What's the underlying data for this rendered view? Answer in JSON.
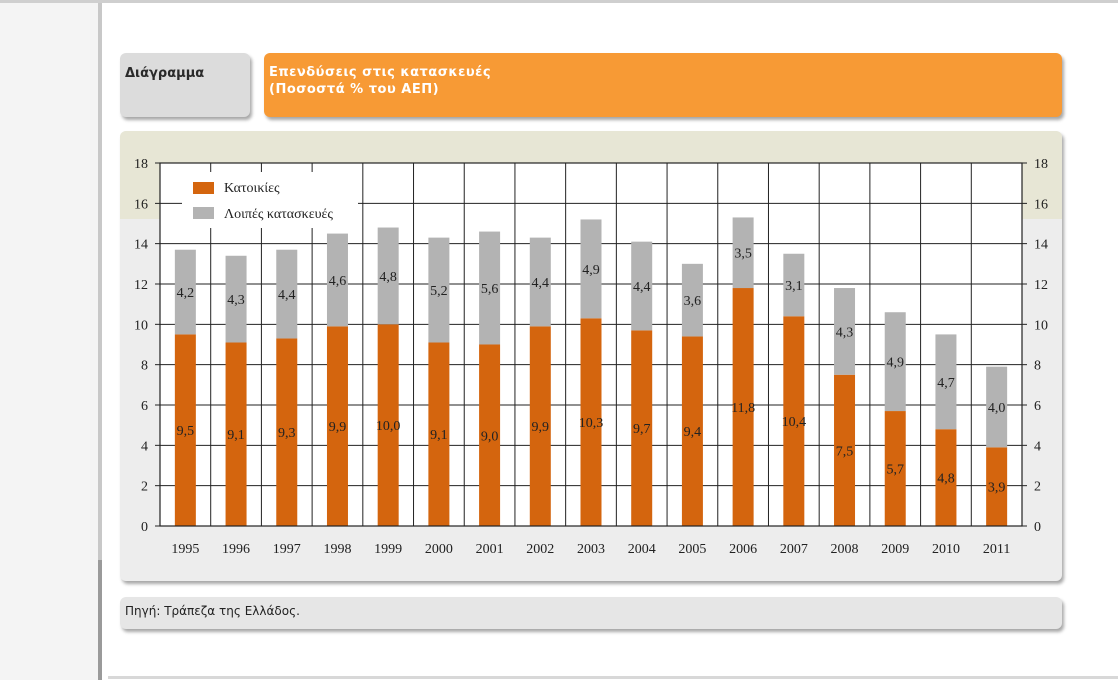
{
  "panel": {
    "label": "Διάγραμμα",
    "title_line1": "Επενδύσεις στις κατασκευές",
    "title_line2": "(Ποσοστά % του ΑΕΠ)",
    "source": "Πηγή: Τράπεζα της Ελλάδος."
  },
  "chart_data": {
    "type": "bar",
    "stacked": true,
    "categories": [
      "1995",
      "1996",
      "1997",
      "1998",
      "1999",
      "2000",
      "2001",
      "2002",
      "2003",
      "2004",
      "2005",
      "2006",
      "2007",
      "2008",
      "2009",
      "2010",
      "2011"
    ],
    "series": [
      {
        "name": "Κατοικίες",
        "color": "#d4650e",
        "values": [
          9.5,
          9.1,
          9.3,
          9.9,
          10.0,
          9.1,
          9.0,
          9.9,
          10.3,
          9.7,
          9.4,
          11.8,
          10.4,
          7.5,
          5.7,
          4.8,
          3.9
        ],
        "labels": [
          "9,5",
          "9,1",
          "9,3",
          "9,9",
          "10,0",
          "9,1",
          "9,0",
          "9,9",
          "10,3",
          "9,7",
          "9,4",
          "11,8",
          "10,4",
          "7,5",
          "5,7",
          "4,8",
          "3,9"
        ]
      },
      {
        "name": "Λοιπές κατασκευές",
        "color": "#b3b3b3",
        "values": [
          4.2,
          4.3,
          4.4,
          4.6,
          4.8,
          5.2,
          5.6,
          4.4,
          4.9,
          4.4,
          3.6,
          3.5,
          3.1,
          4.3,
          4.9,
          4.7,
          4.0
        ],
        "labels": [
          "4,2",
          "4,3",
          "4,4",
          "4,6",
          "4,8",
          "5,2",
          "5,6",
          "4,4",
          "4,9",
          "4,4",
          "3,6",
          "3,5",
          "3,1",
          "4,3",
          "4,9",
          "4,7",
          "4,0"
        ]
      }
    ],
    "ylim": [
      0,
      18
    ],
    "yticks": [
      0,
      2,
      4,
      6,
      8,
      10,
      12,
      14,
      16,
      18
    ],
    "grid": true,
    "legend_position": "top-left",
    "dual_y_axis": true
  }
}
